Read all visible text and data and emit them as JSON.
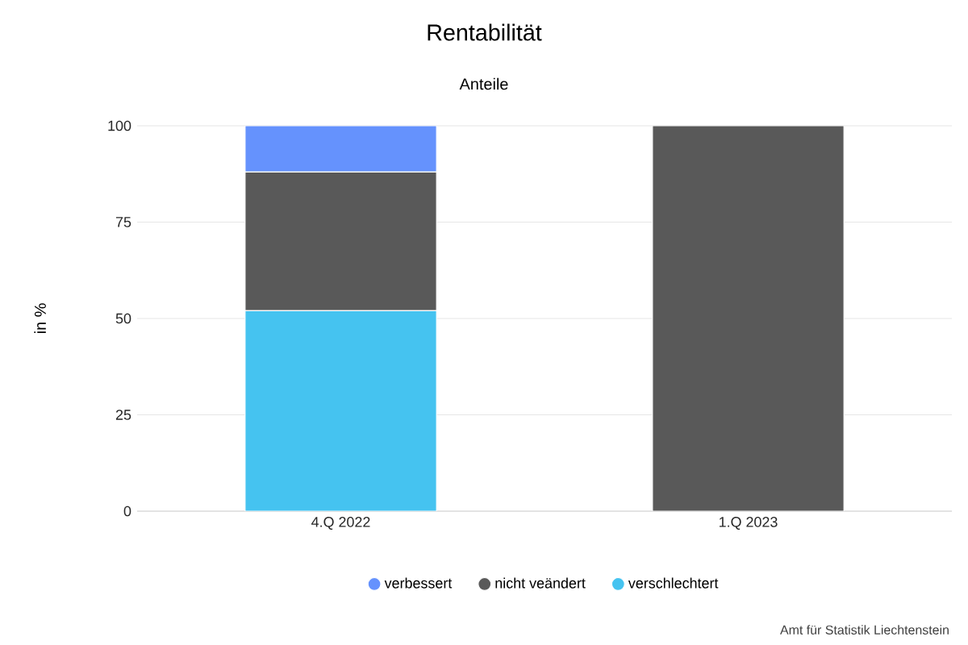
{
  "chart_data": {
    "type": "bar",
    "title": "Rentabilität",
    "subtitle": "Anteile",
    "ylabel": "in %",
    "categories": [
      "4.Q 2022",
      "1.Q 2023"
    ],
    "stacked": true,
    "series": [
      {
        "name": "verschlechtert",
        "color": "#45c3f0",
        "values": [
          52,
          0
        ]
      },
      {
        "name": "nicht veändert",
        "color": "#595959",
        "values": [
          36,
          100
        ]
      },
      {
        "name": "verbessert",
        "color": "#6592fd",
        "values": [
          12,
          0
        ]
      }
    ],
    "ylim": [
      0,
      100
    ],
    "yticks": [
      0,
      25,
      50,
      75,
      100
    ],
    "grid": "y",
    "legend": "bottom",
    "annotations": [
      "Amt für Statistik Liechtenstein"
    ]
  }
}
